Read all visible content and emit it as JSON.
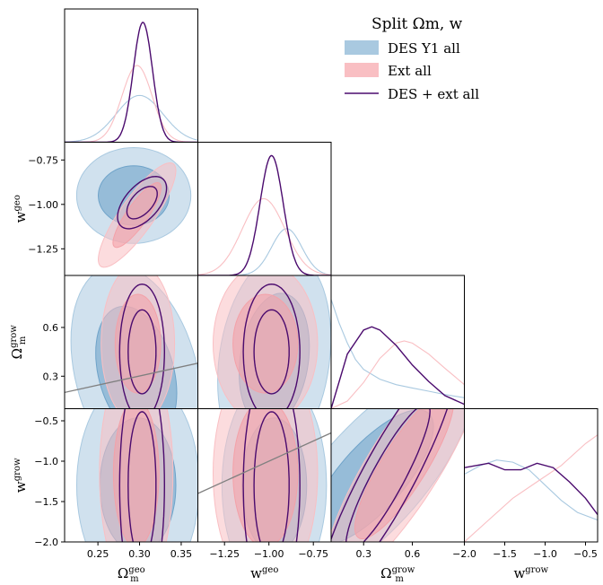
{
  "legend": {
    "title": "Split Ωm, w",
    "entries": [
      {
        "label": "DES Y1 all",
        "kind": "fill",
        "color": "#a9c9e0"
      },
      {
        "label": "Ext all",
        "kind": "fill",
        "color": "#f9bfc3"
      },
      {
        "label": "DES + ext all",
        "kind": "line",
        "color": "#4b0b6e"
      }
    ]
  },
  "colors": {
    "des": "#a9c9e0",
    "des_dark": "#6fa3c9",
    "ext": "#f9bfc3",
    "ext_dark": "#f4a1a8",
    "comb": "#4b0b6e",
    "diag_line": "#808080"
  },
  "chart_data": {
    "type": "triangle-corner-plot",
    "parameters": [
      {
        "name": "Ωm^geo",
        "axis_label": "Ωgeo_m",
        "range": [
          0.21,
          0.37
        ],
        "ticks": [
          "0.25",
          "0.30",
          "0.35"
        ],
        "tick_values": [
          0.25,
          0.3,
          0.35
        ]
      },
      {
        "name": "w^geo",
        "axis_label": "wgeo",
        "range": [
          -1.4,
          -0.65
        ],
        "ticks": [
          "−1.25",
          "−1.00",
          "−0.75"
        ],
        "tick_values": [
          -1.25,
          -1.0,
          -0.75
        ]
      },
      {
        "name": "Ωm^grow",
        "axis_label": "Ωgrow_m",
        "range": [
          0.1,
          0.92
        ],
        "ticks": [
          "0.3",
          "0.6"
        ],
        "tick_values": [
          0.3,
          0.6
        ]
      },
      {
        "name": "w^grow",
        "axis_label": "wgrow",
        "range": [
          -2.0,
          -0.35
        ],
        "ticks": [
          "−2.0",
          "−1.5",
          "−1.0",
          "−0.5"
        ],
        "tick_values": [
          -2.0,
          -1.5,
          -1.0,
          -0.5
        ]
      }
    ],
    "row_ticks": {
      "w^geo": [
        "−0.75",
        "−1.00",
        "−1.25"
      ],
      "Ωm^grow": [
        "0.6",
        "0.3"
      ],
      "w^grow": [
        "−0.5",
        "−1.0",
        "−1.5",
        "−2.0"
      ]
    },
    "marginals": [
      {
        "param": "Ωm^geo",
        "series": [
          {
            "name": "DES Y1 all",
            "type": "gaussian",
            "mean": 0.3,
            "sigma": 0.028
          },
          {
            "name": "Ext all",
            "type": "gaussian",
            "mean": 0.297,
            "sigma": 0.018
          },
          {
            "name": "DES + ext all",
            "type": "gaussian",
            "mean": 0.304,
            "sigma": 0.0115
          }
        ]
      },
      {
        "param": "w^geo",
        "series": [
          {
            "name": "DES Y1 all",
            "type": "gaussian",
            "mean": -0.9,
            "sigma": 0.085
          },
          {
            "name": "Ext all",
            "type": "gaussian",
            "mean": -1.03,
            "sigma": 0.12
          },
          {
            "name": "DES + ext all",
            "type": "gaussian",
            "mean": -0.985,
            "sigma": 0.065
          }
        ]
      },
      {
        "param": "Ωm^grow",
        "series": [
          {
            "name": "DES Y1 all",
            "type": "points",
            "x": [
              0.1,
              0.15,
              0.2,
              0.25,
              0.3,
              0.4,
              0.5,
              0.6,
              0.7,
              0.8,
              0.92
            ],
            "y": [
              1.0,
              0.78,
              0.6,
              0.45,
              0.36,
              0.27,
              0.22,
              0.19,
              0.16,
              0.13,
              0.1
            ]
          },
          {
            "name": "Ext all",
            "type": "points",
            "x": [
              0.1,
              0.2,
              0.3,
              0.4,
              0.5,
              0.55,
              0.6,
              0.7,
              0.8,
              0.92
            ],
            "y": [
              0.0,
              0.07,
              0.24,
              0.46,
              0.6,
              0.62,
              0.6,
              0.5,
              0.37,
              0.22
            ]
          },
          {
            "name": "DES + ext all",
            "type": "points",
            "x": [
              0.1,
              0.2,
              0.3,
              0.35,
              0.4,
              0.5,
              0.6,
              0.7,
              0.8,
              0.92
            ],
            "y": [
              0.0,
              0.5,
              0.72,
              0.75,
              0.72,
              0.58,
              0.4,
              0.25,
              0.12,
              0.04
            ]
          }
        ]
      },
      {
        "param": "w^grow",
        "series": [
          {
            "name": "DES Y1 all",
            "type": "points",
            "x": [
              -2.0,
              -1.8,
              -1.6,
              -1.4,
              -1.2,
              -1.0,
              -0.8,
              -0.6,
              -0.35
            ],
            "y": [
              0.62,
              0.7,
              0.75,
              0.73,
              0.66,
              0.52,
              0.38,
              0.27,
              0.2
            ]
          },
          {
            "name": "Ext all",
            "type": "points",
            "x": [
              -2.0,
              -1.7,
              -1.4,
              -1.1,
              -0.8,
              -0.5,
              -0.35
            ],
            "y": [
              0.0,
              0.2,
              0.4,
              0.55,
              0.7,
              0.9,
              0.98
            ]
          },
          {
            "name": "DES + ext all",
            "type": "points",
            "x": [
              -2.0,
              -1.7,
              -1.5,
              -1.3,
              -1.1,
              -0.9,
              -0.7,
              -0.5,
              -0.35
            ],
            "y": [
              0.68,
              0.72,
              0.66,
              0.66,
              0.72,
              0.68,
              0.55,
              0.4,
              0.25
            ]
          }
        ]
      }
    ],
    "contours_2d": [
      {
        "x": "Ωm^geo",
        "y": "w^geo",
        "series": [
          {
            "name": "DES Y1 all",
            "center": [
              0.293,
              -0.95
            ],
            "sx": 0.028,
            "sy": 0.11,
            "rho": 0.0
          },
          {
            "name": "Ext all",
            "center": [
              0.297,
              -1.06
            ],
            "sx": 0.019,
            "sy": 0.12,
            "rho": 0.85
          },
          {
            "name": "DES + ext all",
            "center": [
              0.303,
              -0.99
            ],
            "sx": 0.012,
            "sy": 0.06,
            "rho": 0.55
          }
        ]
      },
      {
        "x": "Ωm^geo",
        "y": "Ωm^grow",
        "series": [
          {
            "name": "DES Y1 all",
            "center": [
              0.296,
              0.32
            ],
            "sx": 0.032,
            "sy": 0.27,
            "rho": -0.3
          },
          {
            "name": "Ext all",
            "center": [
              0.298,
              0.5
            ],
            "sx": 0.018,
            "sy": 0.2,
            "rho": 0.0
          },
          {
            "name": "DES + ext all",
            "center": [
              0.303,
              0.45
            ],
            "sx": 0.011,
            "sy": 0.17,
            "rho": 0.0
          }
        ]
      },
      {
        "x": "w^geo",
        "y": "Ωm^grow",
        "series": [
          {
            "name": "DES Y1 all",
            "center": [
              -0.97,
              0.4
            ],
            "sx": 0.13,
            "sy": 0.27,
            "rho": 0.2
          },
          {
            "name": "Ext all",
            "center": [
              -1.02,
              0.5
            ],
            "sx": 0.12,
            "sy": 0.2,
            "rho": 0.0
          },
          {
            "name": "DES + ext all",
            "center": [
              -0.985,
              0.45
            ],
            "sx": 0.065,
            "sy": 0.17,
            "rho": 0.0
          }
        ]
      },
      {
        "x": "Ωm^geo",
        "y": "w^grow",
        "series": [
          {
            "name": "DES Y1 all",
            "center": [
              0.298,
              -1.3
            ],
            "sx": 0.03,
            "sy": 0.55,
            "rho": 0.0
          },
          {
            "name": "Ext all",
            "center": [
              0.296,
              -1.15
            ],
            "sx": 0.018,
            "sy": 0.6,
            "rho": 0.0
          },
          {
            "name": "DES + ext all",
            "center": [
              0.303,
              -1.3
            ],
            "sx": 0.011,
            "sy": 0.6,
            "rho": 0.0
          }
        ]
      },
      {
        "x": "w^geo",
        "y": "w^grow",
        "series": [
          {
            "name": "DES Y1 all",
            "center": [
              -0.97,
              -1.3
            ],
            "sx": 0.12,
            "sy": 0.55,
            "rho": 0.0
          },
          {
            "name": "Ext all",
            "center": [
              -1.02,
              -1.15
            ],
            "sx": 0.12,
            "sy": 0.6,
            "rho": 0.0
          },
          {
            "name": "DES + ext all",
            "center": [
              -0.985,
              -1.3
            ],
            "sx": 0.065,
            "sy": 0.6,
            "rho": 0.0
          }
        ]
      },
      {
        "x": "Ωm^grow",
        "y": "w^grow",
        "series": [
          {
            "name": "DES Y1 all",
            "center": [
              0.35,
              -1.2
            ],
            "sx": 0.25,
            "sy": 0.55,
            "rho": 0.75
          },
          {
            "name": "Ext all",
            "center": [
              0.55,
              -1.05
            ],
            "sx": 0.2,
            "sy": 0.6,
            "rho": 0.85
          },
          {
            "name": "DES + ext all",
            "center": [
              0.45,
              -1.2
            ],
            "sx": 0.17,
            "sy": 0.6,
            "rho": 0.9
          }
        ]
      }
    ],
    "reference_lines": [
      {
        "x": "Ωm^geo",
        "y": "Ωm^grow",
        "from": [
          0.21,
          0.2
        ],
        "to": [
          0.37,
          0.38
        ]
      },
      {
        "x": "w^geo",
        "y": "w^grow",
        "from": [
          -1.4,
          -1.4
        ],
        "to": [
          -0.65,
          -0.65
        ]
      }
    ],
    "grid": false,
    "legend_position": "top-right"
  }
}
